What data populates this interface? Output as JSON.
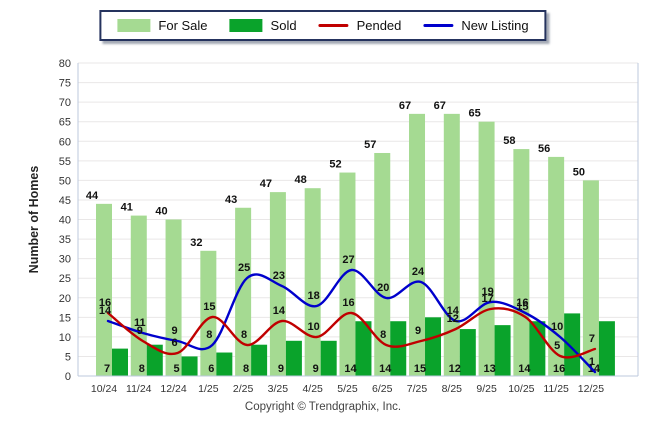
{
  "legend": {
    "items": [
      {
        "label": "For Sale",
        "swatch": "bar",
        "color": "#A5DA92"
      },
      {
        "label": "Sold",
        "swatch": "bar",
        "color": "#0AA32B"
      },
      {
        "label": "Pended",
        "swatch": "line",
        "color": "#C00000"
      },
      {
        "label": "New Listing",
        "swatch": "line",
        "color": "#0000CC"
      }
    ]
  },
  "chart_data": {
    "type": "bar+line",
    "categories": [
      "10/24",
      "11/24",
      "12/24",
      "1/25",
      "2/25",
      "3/25",
      "4/25",
      "5/25",
      "6/25",
      "7/25",
      "8/25",
      "9/25",
      "10/25",
      "11/25",
      "12/25"
    ],
    "series": [
      {
        "name": "For Sale",
        "type": "bar",
        "color": "#A5DA92",
        "values": [
          44,
          41,
          40,
          32,
          43,
          47,
          48,
          52,
          57,
          67,
          67,
          65,
          58,
          56,
          50
        ]
      },
      {
        "name": "Sold",
        "type": "bar",
        "color": "#0AA32B",
        "values": [
          7,
          8,
          5,
          6,
          8,
          9,
          9,
          14,
          14,
          15,
          12,
          13,
          14,
          16,
          14
        ]
      },
      {
        "name": "Pended",
        "type": "line",
        "color": "#C00000",
        "values": [
          16,
          9,
          6,
          15,
          8,
          14,
          10,
          16,
          8,
          9,
          12,
          17,
          15,
          5,
          7
        ]
      },
      {
        "name": "New Listing",
        "type": "line",
        "color": "#0000CC",
        "values": [
          14,
          11,
          9,
          8,
          25,
          23,
          18,
          27,
          20,
          24,
          14,
          19,
          16,
          10,
          1
        ]
      }
    ],
    "ylabel": "Number of Homes",
    "ylim": [
      0,
      80
    ],
    "ytick_step": 5,
    "grid": true,
    "legend_position": "top",
    "label_color": "#111111",
    "axis_tick_color": "#333333",
    "grid_color": "#e9e7e7",
    "frame_color": "#bcc8de"
  },
  "footer": {
    "copyright": "Copyright © Trendgraphix, Inc."
  }
}
